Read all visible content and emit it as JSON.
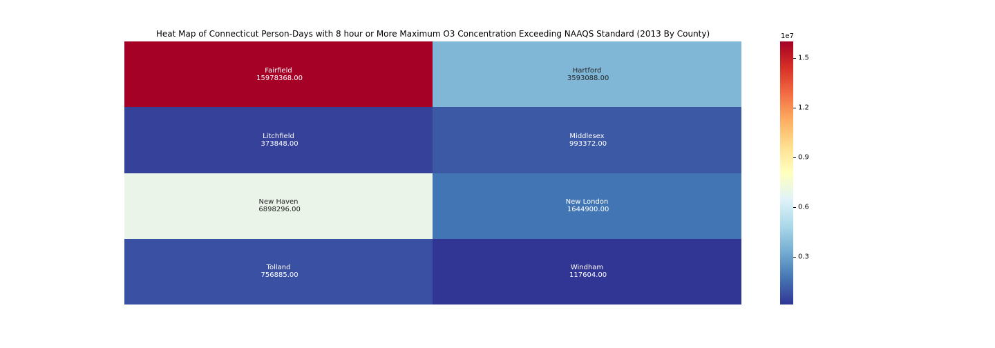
{
  "chart_data": {
    "type": "heatmap",
    "title": "Heat Map of Connecticut Person-Days with 8 hour or More Maximum O3 Concentration Exceeding NAAQS Standard (2013 By County)",
    "xlabel": "",
    "ylabel": "",
    "grid": false,
    "legend": "colorbar-right",
    "colormap": "RdYlBu_r",
    "colorbar": {
      "exponent_label": "1e7",
      "vmin": 117604,
      "vmax": 15978368,
      "ticks": [
        3000000,
        6000000,
        9000000,
        12000000,
        15000000
      ],
      "tick_labels": [
        "0.3",
        "0.6",
        "0.9",
        "1.2",
        "1.5"
      ]
    },
    "cells": [
      {
        "row": 0,
        "col": 0,
        "county": "Fairfield",
        "value": 15978368,
        "value_label": "15978368.00",
        "color": "#a50026",
        "text_color": "#ffffff"
      },
      {
        "row": 0,
        "col": 1,
        "county": "Hartford",
        "value": 3593088,
        "value_label": "3593088.00",
        "color": "#80b6d6",
        "text_color": "#262626"
      },
      {
        "row": 1,
        "col": 0,
        "county": "Litchfield",
        "value": 373848,
        "value_label": "373848.00",
        "color": "#36429a",
        "text_color": "#ffffff"
      },
      {
        "row": 1,
        "col": 1,
        "county": "Middlesex",
        "value": 993372,
        "value_label": "993372.00",
        "color": "#3c59a6",
        "text_color": "#ffffff"
      },
      {
        "row": 2,
        "col": 0,
        "county": "New Haven",
        "value": 6898296,
        "value_label": "6898296.00",
        "color": "#eaf4e8",
        "text_color": "#262626"
      },
      {
        "row": 2,
        "col": 1,
        "county": "New London",
        "value": 1644900,
        "value_label": "1644900.00",
        "color": "#4175b4",
        "text_color": "#ffffff"
      },
      {
        "row": 3,
        "col": 0,
        "county": "Tolland",
        "value": 756885,
        "value_label": "756885.00",
        "color": "#3a50a2",
        "text_color": "#ffffff"
      },
      {
        "row": 3,
        "col": 1,
        "county": "Windham",
        "value": 117604,
        "value_label": "117604.00",
        "color": "#313695",
        "text_color": "#ffffff"
      }
    ]
  }
}
